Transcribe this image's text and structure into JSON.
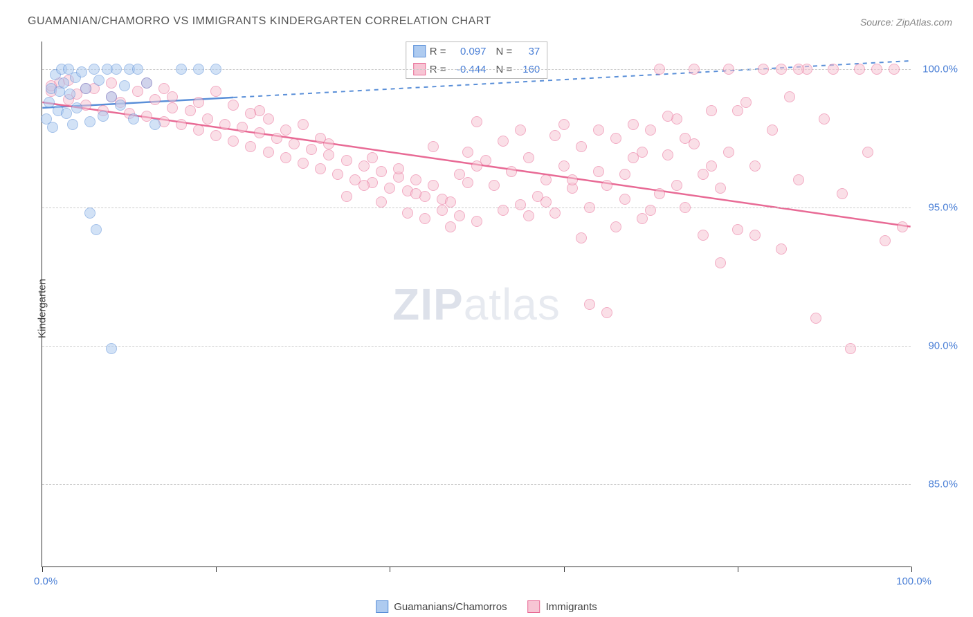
{
  "title": "GUAMANIAN/CHAMORRO VS IMMIGRANTS KINDERGARTEN CORRELATION CHART",
  "source": "Source: ZipAtlas.com",
  "ylabel": "Kindergarten",
  "watermark": {
    "part1": "ZIP",
    "part2": "atlas"
  },
  "chart": {
    "type": "scatter",
    "xlim": [
      0,
      100
    ],
    "ylim": [
      82,
      101
    ],
    "yticks": [
      85.0,
      90.0,
      95.0,
      100.0
    ],
    "ytick_labels": [
      "85.0%",
      "90.0%",
      "95.0%",
      "100.0%"
    ],
    "xticks": [
      0,
      20,
      40,
      60,
      80,
      100
    ],
    "xtick_label_start": "0.0%",
    "xtick_label_end": "100.0%",
    "background_color": "#ffffff",
    "grid_color": "#cccccc",
    "marker_radius": 8,
    "marker_opacity": 0.55,
    "series": [
      {
        "name": "Guamanians/Chamorros",
        "color_fill": "#aecbf0",
        "color_stroke": "#5a8fd8",
        "R": "0.097",
        "N": "37",
        "trend": {
          "x1": 0,
          "y1": 98.6,
          "x2": 100,
          "y2": 100.3,
          "dashed_after_x": 22
        },
        "points": [
          [
            0.5,
            98.2
          ],
          [
            0.8,
            98.8
          ],
          [
            1.0,
            99.3
          ],
          [
            1.2,
            97.9
          ],
          [
            1.5,
            99.8
          ],
          [
            1.8,
            98.5
          ],
          [
            2.0,
            99.2
          ],
          [
            2.2,
            100.0
          ],
          [
            2.5,
            99.5
          ],
          [
            2.8,
            98.4
          ],
          [
            3.0,
            100.0
          ],
          [
            3.2,
            99.1
          ],
          [
            3.5,
            98.0
          ],
          [
            3.8,
            99.7
          ],
          [
            4.0,
            98.6
          ],
          [
            4.5,
            99.9
          ],
          [
            5.0,
            99.3
          ],
          [
            5.5,
            98.1
          ],
          [
            6.0,
            100.0
          ],
          [
            6.5,
            99.6
          ],
          [
            7.0,
            98.3
          ],
          [
            7.5,
            100.0
          ],
          [
            8.0,
            99.0
          ],
          [
            8.5,
            100.0
          ],
          [
            9.0,
            98.7
          ],
          [
            9.5,
            99.4
          ],
          [
            10.0,
            100.0
          ],
          [
            10.5,
            98.2
          ],
          [
            11.0,
            100.0
          ],
          [
            12.0,
            99.5
          ],
          [
            13.0,
            98.0
          ],
          [
            5.5,
            94.8
          ],
          [
            6.2,
            94.2
          ],
          [
            8.0,
            89.9
          ],
          [
            16.0,
            100.0
          ],
          [
            18.0,
            100.0
          ],
          [
            20.0,
            100.0
          ]
        ]
      },
      {
        "name": "Immigrants",
        "color_fill": "#f7c5d4",
        "color_stroke": "#e86a95",
        "R": "-0.444",
        "N": "160",
        "trend": {
          "x1": 0,
          "y1": 98.8,
          "x2": 100,
          "y2": 94.3,
          "dashed_after_x": 100
        },
        "points": [
          [
            1,
            99.2
          ],
          [
            2,
            99.5
          ],
          [
            3,
            98.9
          ],
          [
            4,
            99.1
          ],
          [
            5,
            98.7
          ],
          [
            6,
            99.3
          ],
          [
            7,
            98.5
          ],
          [
            8,
            99.0
          ],
          [
            9,
            98.8
          ],
          [
            10,
            98.4
          ],
          [
            11,
            99.2
          ],
          [
            12,
            98.3
          ],
          [
            13,
            98.9
          ],
          [
            14,
            98.1
          ],
          [
            15,
            98.6
          ],
          [
            16,
            98.0
          ],
          [
            17,
            98.5
          ],
          [
            18,
            97.8
          ],
          [
            19,
            98.2
          ],
          [
            20,
            97.6
          ],
          [
            21,
            98.0
          ],
          [
            22,
            97.4
          ],
          [
            23,
            97.9
          ],
          [
            24,
            97.2
          ],
          [
            25,
            97.7
          ],
          [
            26,
            97.0
          ],
          [
            27,
            97.5
          ],
          [
            28,
            96.8
          ],
          [
            29,
            97.3
          ],
          [
            30,
            96.6
          ],
          [
            31,
            97.1
          ],
          [
            32,
            96.4
          ],
          [
            33,
            96.9
          ],
          [
            34,
            96.2
          ],
          [
            35,
            96.7
          ],
          [
            36,
            96.0
          ],
          [
            37,
            96.5
          ],
          [
            38,
            95.9
          ],
          [
            39,
            96.3
          ],
          [
            40,
            95.7
          ],
          [
            41,
            96.1
          ],
          [
            42,
            95.6
          ],
          [
            43,
            96.0
          ],
          [
            44,
            95.4
          ],
          [
            45,
            95.8
          ],
          [
            46,
            95.3
          ],
          [
            47,
            95.2
          ],
          [
            48,
            96.2
          ],
          [
            49,
            97.0
          ],
          [
            50,
            96.5
          ],
          [
            50,
            98.1
          ],
          [
            52,
            95.8
          ],
          [
            53,
            94.9
          ],
          [
            54,
            96.3
          ],
          [
            55,
            95.1
          ],
          [
            56,
            96.8
          ],
          [
            57,
            95.4
          ],
          [
            58,
            96.0
          ],
          [
            59,
            94.8
          ],
          [
            60,
            96.5
          ],
          [
            61,
            95.7
          ],
          [
            62,
            97.2
          ],
          [
            63,
            95.0
          ],
          [
            64,
            96.3
          ],
          [
            65,
            95.8
          ],
          [
            66,
            97.5
          ],
          [
            67,
            95.3
          ],
          [
            68,
            96.8
          ],
          [
            69,
            94.6
          ],
          [
            70,
            97.8
          ],
          [
            71,
            95.5
          ],
          [
            72,
            96.9
          ],
          [
            73,
            98.2
          ],
          [
            74,
            95.0
          ],
          [
            75,
            97.3
          ],
          [
            76,
            96.2
          ],
          [
            77,
            98.5
          ],
          [
            78,
            95.7
          ],
          [
            79,
            97.0
          ],
          [
            80,
            94.2
          ],
          [
            81,
            98.8
          ],
          [
            82,
            96.5
          ],
          [
            83,
            100.0
          ],
          [
            84,
            97.8
          ],
          [
            85,
            93.5
          ],
          [
            86,
            99.0
          ],
          [
            87,
            96.0
          ],
          [
            88,
            100.0
          ],
          [
            89,
            91.0
          ],
          [
            90,
            98.2
          ],
          [
            91,
            100.0
          ],
          [
            92,
            95.5
          ],
          [
            93,
            89.9
          ],
          [
            94,
            100.0
          ],
          [
            95,
            97.0
          ],
          [
            96,
            100.0
          ],
          [
            97,
            93.8
          ],
          [
            98,
            100.0
          ],
          [
            99,
            94.3
          ],
          [
            42,
            94.8
          ],
          [
            44,
            94.6
          ],
          [
            46,
            94.9
          ],
          [
            48,
            94.7
          ],
          [
            62,
            93.9
          ],
          [
            58,
            95.2
          ],
          [
            60,
            98.0
          ],
          [
            35,
            95.4
          ],
          [
            37,
            95.8
          ],
          [
            39,
            95.2
          ],
          [
            28,
            97.8
          ],
          [
            30,
            98.0
          ],
          [
            32,
            97.5
          ],
          [
            25,
            98.5
          ],
          [
            15,
            99.0
          ],
          [
            18,
            98.8
          ],
          [
            20,
            99.2
          ],
          [
            8,
            99.5
          ],
          [
            5,
            99.3
          ],
          [
            3,
            99.6
          ],
          [
            1,
            99.4
          ],
          [
            68,
            98.0
          ],
          [
            70,
            94.9
          ],
          [
            72,
            98.3
          ],
          [
            55,
            97.8
          ],
          [
            50,
            94.5
          ],
          [
            45,
            97.2
          ],
          [
            47,
            94.3
          ],
          [
            78,
            93.0
          ],
          [
            80,
            98.5
          ],
          [
            63,
            91.5
          ],
          [
            65,
            91.2
          ],
          [
            74,
            97.5
          ],
          [
            76,
            94.0
          ],
          [
            66,
            94.3
          ],
          [
            85,
            100.0
          ],
          [
            82,
            94.0
          ],
          [
            87,
            100.0
          ],
          [
            79,
            100.0
          ],
          [
            75,
            100.0
          ],
          [
            71,
            100.0
          ],
          [
            12,
            99.5
          ],
          [
            14,
            99.3
          ],
          [
            22,
            98.7
          ],
          [
            24,
            98.4
          ],
          [
            26,
            98.2
          ],
          [
            33,
            97.3
          ],
          [
            38,
            96.8
          ],
          [
            41,
            96.4
          ],
          [
            43,
            95.5
          ],
          [
            49,
            95.9
          ],
          [
            51,
            96.7
          ],
          [
            53,
            97.4
          ],
          [
            56,
            94.7
          ],
          [
            59,
            97.6
          ],
          [
            61,
            96.0
          ],
          [
            64,
            97.8
          ],
          [
            67,
            96.2
          ],
          [
            69,
            97.0
          ],
          [
            73,
            95.8
          ],
          [
            77,
            96.5
          ]
        ]
      }
    ]
  },
  "bottom_legend": [
    {
      "label": "Guamanians/Chamorros",
      "fill": "#aecbf0",
      "stroke": "#5a8fd8"
    },
    {
      "label": "Immigrants",
      "fill": "#f7c5d4",
      "stroke": "#e86a95"
    }
  ],
  "stat_labels": {
    "R": "R =",
    "N": "N ="
  }
}
